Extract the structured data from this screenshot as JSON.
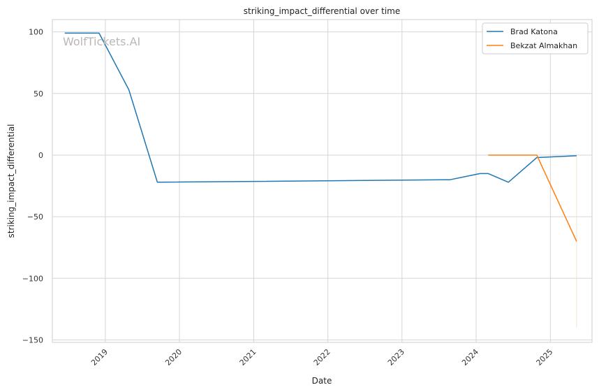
{
  "chart_data": {
    "type": "line",
    "title": "striking_impact_differential over time",
    "xlabel": "Date",
    "ylabel": "striking_impact_differential",
    "watermark": "WolfTickets.AI",
    "x_ticks": [
      "2019",
      "2020",
      "2021",
      "2022",
      "2023",
      "2024",
      "2025"
    ],
    "y_ticks": [
      100,
      50,
      0,
      -50,
      -100,
      -150
    ],
    "y_tick_labels": [
      "100",
      "50",
      "0",
      "−50",
      "−100",
      "−150"
    ],
    "xlim": [
      "2018-04-15",
      "2025-07-25"
    ],
    "ylim": [
      -152,
      110
    ],
    "grid": true,
    "legend_position": "top-right",
    "series": [
      {
        "name": "Brad Katona",
        "color": "#1f77b4",
        "points": [
          {
            "x": "2018-06-15",
            "y": 99
          },
          {
            "x": "2018-12-01",
            "y": 99
          },
          {
            "x": "2019-04-27",
            "y": 53
          },
          {
            "x": "2019-09-14",
            "y": -22
          },
          {
            "x": "2023-08-26",
            "y": -20
          },
          {
            "x": "2024-01-20",
            "y": -15
          },
          {
            "x": "2024-03-01",
            "y": -15
          },
          {
            "x": "2024-06-08",
            "y": -22
          },
          {
            "x": "2024-10-26",
            "y": -2
          },
          {
            "x": "2025-05-10",
            "y": -0.5
          }
        ]
      },
      {
        "name": "Bekzat Almakhan",
        "color": "#ff7f0e",
        "points": [
          {
            "x": "2024-03-01",
            "y": 0
          },
          {
            "x": "2024-10-26",
            "y": 0
          },
          {
            "x": "2025-05-10",
            "y": -70
          }
        ]
      }
    ],
    "faint_vertical_line": {
      "x": "2025-05-10",
      "y_from": -140,
      "y_to": 0,
      "color": "#f3e6cf"
    }
  }
}
